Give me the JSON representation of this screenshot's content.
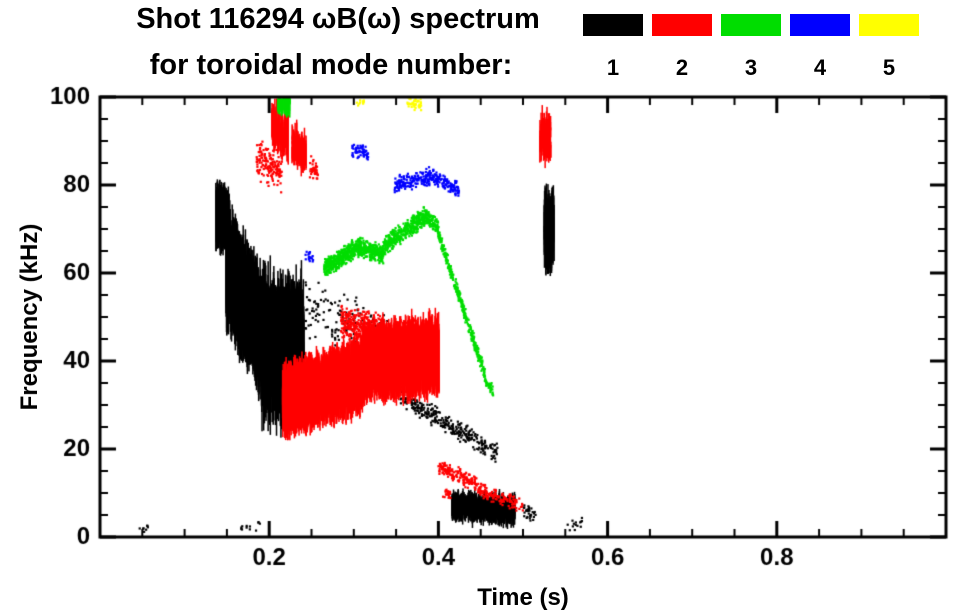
{
  "title": {
    "line1": "Shot 116294 ωB(ω) spectrum",
    "line2": "for toroidal mode number:"
  },
  "legend": {
    "modes": [
      {
        "label": "1",
        "color": "#000000"
      },
      {
        "label": "2",
        "color": "#ff0000"
      },
      {
        "label": "3",
        "color": "#00dd00"
      },
      {
        "label": "4",
        "color": "#0000ff"
      },
      {
        "label": "5",
        "color": "#ffff00"
      }
    ]
  },
  "chart_data": {
    "type": "scatter",
    "title": "Shot 116294 ωB(ω) spectrum for toroidal mode number: 1 2 3 4 5",
    "xlabel": "Time (s)",
    "ylabel": "Frequency (kHz)",
    "xlim": [
      0,
      1.0
    ],
    "ylim": [
      0,
      100
    ],
    "x_major_ticks": [
      0.2,
      0.4,
      0.6,
      0.8
    ],
    "x_tick_labels": [
      "0.2",
      "0.4",
      "0.6",
      "0.8"
    ],
    "x_minor_step": 0.05,
    "y_major_ticks": [
      0,
      20,
      40,
      60,
      80,
      100
    ],
    "y_tick_labels": [
      "0",
      "20",
      "40",
      "60",
      "80",
      "100"
    ],
    "y_minor_step": 5,
    "grid": false,
    "background": "#ffffff",
    "legend_position": "top-right",
    "series": [
      {
        "name": "n=1",
        "color": "#000000",
        "bands": [
          {
            "t": [
              0.136,
              0.152
            ],
            "f": [
              73,
              72
            ],
            "spread": 7,
            "n": 500,
            "style": "streaks"
          },
          {
            "t": [
              0.148,
              0.195
            ],
            "f": [
              62,
              45
            ],
            "spread": 13,
            "n": 2200,
            "style": "streaks"
          },
          {
            "t": [
              0.19,
              0.225
            ],
            "f": [
              44,
              42
            ],
            "spread": 16,
            "n": 1000,
            "style": "streaks"
          },
          {
            "t": [
              0.225,
              0.24
            ],
            "f": [
              45,
              44
            ],
            "spread": 15,
            "n": 250,
            "style": "streaks"
          },
          {
            "t": [
              0.24,
              0.34
            ],
            "f": [
              52,
              46
            ],
            "spread": 7,
            "n": 150,
            "style": "dots"
          },
          {
            "t": [
              0.355,
              0.47
            ],
            "f": [
              32,
              19
            ],
            "spread": 2.5,
            "n": 300,
            "style": "dots"
          },
          {
            "t": [
              0.415,
              0.49
            ],
            "f": [
              7,
              6
            ],
            "spread": 3.5,
            "n": 900,
            "style": "streaks"
          },
          {
            "t": [
              0.5,
              0.515
            ],
            "f": [
              6,
              5
            ],
            "spread": 2,
            "n": 30,
            "style": "dots"
          },
          {
            "t": [
              0.524,
              0.536
            ],
            "f": [
              70,
              70
            ],
            "spread": 10,
            "n": 160,
            "style": "streaks"
          },
          {
            "t": [
              0.045,
              0.06
            ],
            "f": [
              2,
              2
            ],
            "spread": 1.5,
            "n": 8,
            "style": "dots"
          },
          {
            "t": [
              0.165,
              0.19
            ],
            "f": [
              2,
              3
            ],
            "spread": 2,
            "n": 12,
            "style": "dots"
          },
          {
            "t": [
              0.545,
              0.57
            ],
            "f": [
              3,
              3
            ],
            "spread": 2,
            "n": 14,
            "style": "dots"
          }
        ]
      },
      {
        "name": "n=2",
        "color": "#ff0000",
        "bands": [
          {
            "t": [
              0.185,
              0.215
            ],
            "f": [
              86,
              83
            ],
            "spread": 5,
            "n": 160,
            "style": "dots"
          },
          {
            "t": [
              0.202,
              0.222
            ],
            "f": [
              94,
              91
            ],
            "spread": 6,
            "n": 140,
            "style": "streaks"
          },
          {
            "t": [
              0.226,
              0.243
            ],
            "f": [
              89,
              87
            ],
            "spread": 5,
            "n": 110,
            "style": "streaks"
          },
          {
            "t": [
              0.248,
              0.258
            ],
            "f": [
              84,
              83
            ],
            "spread": 3,
            "n": 40,
            "style": "dots"
          },
          {
            "t": [
              0.215,
              0.31
            ],
            "f": [
              31,
              37
            ],
            "spread": 8,
            "n": 2600,
            "style": "streaks"
          },
          {
            "t": [
              0.31,
              0.4
            ],
            "f": [
              40,
              41
            ],
            "spread": 8.5,
            "n": 2400,
            "style": "streaks"
          },
          {
            "t": [
              0.285,
              0.335
            ],
            "f": [
              49,
              47
            ],
            "spread": 4,
            "n": 350,
            "style": "dots"
          },
          {
            "t": [
              0.35,
              0.395
            ],
            "f": [
              47,
              46
            ],
            "spread": 3.5,
            "n": 250,
            "style": "dots"
          },
          {
            "t": [
              0.4,
              0.445
            ],
            "f": [
              16,
              12
            ],
            "spread": 2,
            "n": 160,
            "style": "dots"
          },
          {
            "t": [
              0.445,
              0.5
            ],
            "f": [
              11,
              7
            ],
            "spread": 1.8,
            "n": 140,
            "style": "dots"
          },
          {
            "t": [
              0.405,
              0.415
            ],
            "f": [
              10,
              10
            ],
            "spread": 1.5,
            "n": 25,
            "style": "dots"
          },
          {
            "t": [
              0.519,
              0.532
            ],
            "f": [
              91,
              91
            ],
            "spread": 5.5,
            "n": 130,
            "style": "streaks"
          }
        ]
      },
      {
        "name": "n=3",
        "color": "#00dd00",
        "bands": [
          {
            "t": [
              0.209,
              0.224
            ],
            "f": [
              99,
              98
            ],
            "spread": 3,
            "n": 90,
            "style": "streaks"
          },
          {
            "t": [
              0.265,
              0.305
            ],
            "f": [
              61,
              66
            ],
            "spread": 2.5,
            "n": 420,
            "style": "dots"
          },
          {
            "t": [
              0.305,
              0.335
            ],
            "f": [
              66,
              64
            ],
            "spread": 2.5,
            "n": 300,
            "style": "dots"
          },
          {
            "t": [
              0.335,
              0.385
            ],
            "f": [
              66,
              73
            ],
            "spread": 2.5,
            "n": 420,
            "style": "dots"
          },
          {
            "t": [
              0.385,
              0.4
            ],
            "f": [
              73,
              70
            ],
            "spread": 2,
            "n": 120,
            "style": "dots"
          },
          {
            "t": [
              0.4,
              0.455
            ],
            "f": [
              69,
              37
            ],
            "spread": 1.8,
            "n": 320,
            "style": "dots"
          },
          {
            "t": [
              0.455,
              0.465
            ],
            "f": [
              36,
              33
            ],
            "spread": 1.5,
            "n": 40,
            "style": "dots"
          }
        ]
      },
      {
        "name": "n=4",
        "color": "#0000ff",
        "bands": [
          {
            "t": [
              0.243,
              0.252
            ],
            "f": [
              64,
              64
            ],
            "spread": 2,
            "n": 18,
            "style": "dots"
          },
          {
            "t": [
              0.298,
              0.318
            ],
            "f": [
              88,
              87
            ],
            "spread": 2,
            "n": 60,
            "style": "dots"
          },
          {
            "t": [
              0.348,
              0.39
            ],
            "f": [
              80,
              82
            ],
            "spread": 2.2,
            "n": 160,
            "style": "dots"
          },
          {
            "t": [
              0.39,
              0.425
            ],
            "f": [
              82,
              79
            ],
            "spread": 2,
            "n": 130,
            "style": "dots"
          }
        ]
      },
      {
        "name": "n=5",
        "color": "#ffff00",
        "bands": [
          {
            "t": [
              0.362,
              0.38
            ],
            "f": [
              99,
              98
            ],
            "spread": 1.8,
            "n": 45,
            "style": "dots"
          },
          {
            "t": [
              0.303,
              0.312
            ],
            "f": [
              99,
              99
            ],
            "spread": 1.2,
            "n": 12,
            "style": "dots"
          }
        ]
      }
    ]
  }
}
